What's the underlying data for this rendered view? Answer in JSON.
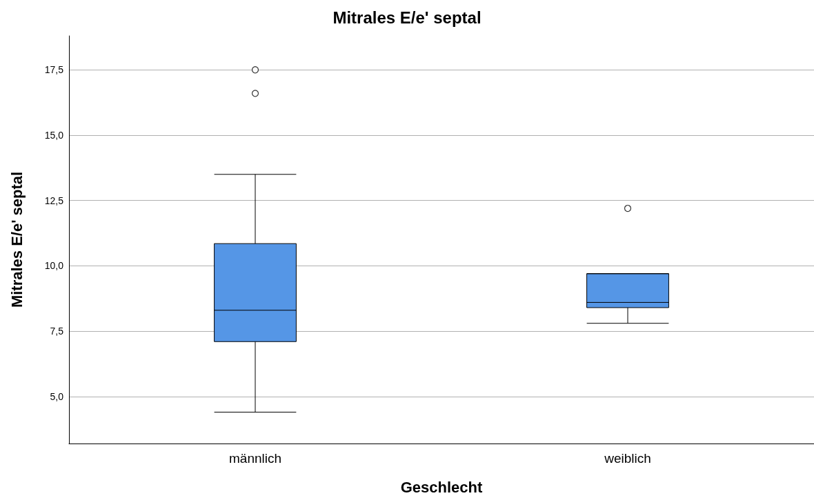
{
  "chart_data": {
    "type": "box",
    "title": "Mitrales E/e' septal",
    "xlabel": "Geschlecht",
    "ylabel": "Mitrales E/e' septal",
    "categories": [
      "männlich",
      "weiblich"
    ],
    "series": [
      {
        "color": "#5596e6",
        "boxes": [
          {
            "low": 4.4,
            "q1": 7.1,
            "median": 8.3,
            "q3": 10.85,
            "high": 13.5,
            "outliers": [
              17.5,
              16.6
            ]
          },
          {
            "low": 7.8,
            "q1": 8.4,
            "median": 8.6,
            "q3": 9.7,
            "high": 9.7,
            "outliers": [
              12.2
            ]
          }
        ]
      }
    ],
    "ylim": [
      3.2,
      18.8
    ],
    "yticks": [
      {
        "value": 5,
        "label": "5,0"
      },
      {
        "value": 7.5,
        "label": "7,5"
      },
      {
        "value": 10,
        "label": "10,0"
      },
      {
        "value": 12.5,
        "label": "12,5"
      },
      {
        "value": 15,
        "label": "15,0"
      },
      {
        "value": 17.5,
        "label": "17,5"
      }
    ],
    "grid": "y"
  }
}
